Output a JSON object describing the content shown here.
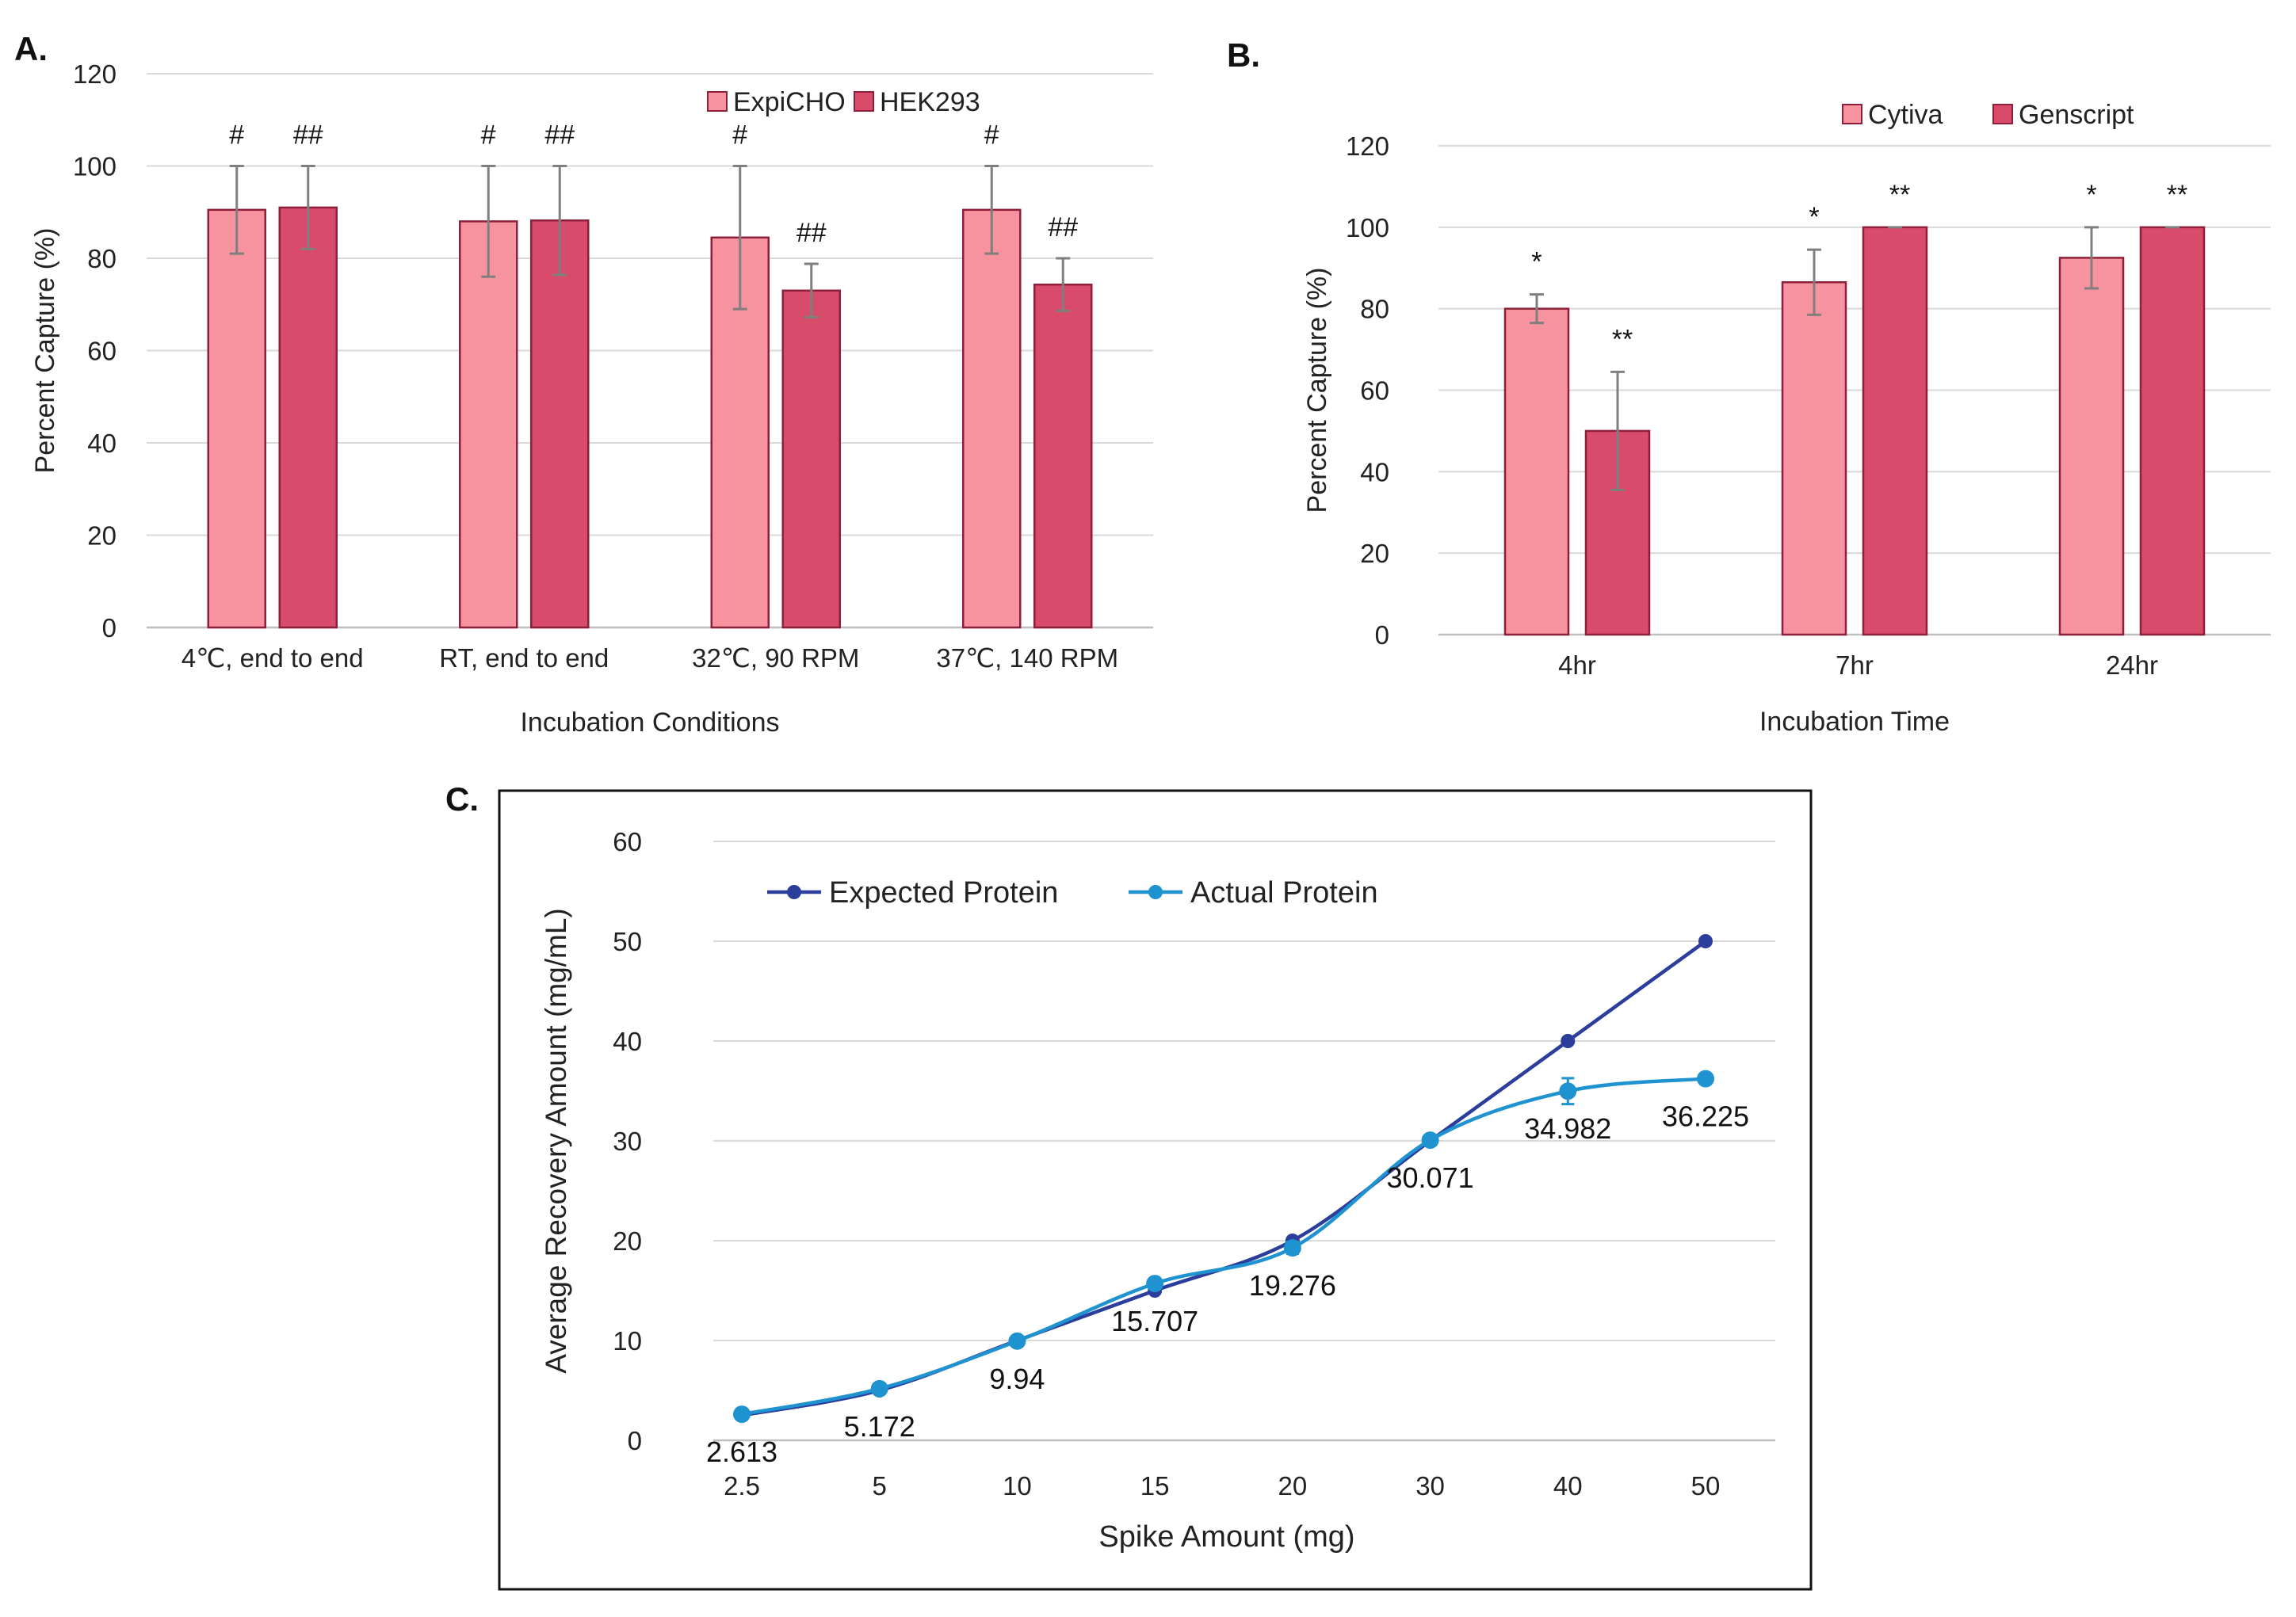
{
  "figure": {
    "panel_labels": [
      "A.",
      "B.",
      "C."
    ]
  },
  "colors": {
    "light_pink": "#f7939e",
    "dark_pink": "#d94b6a",
    "bar_edge": "#8e1f3a",
    "expected_line": "#2c3e9c",
    "actual_line": "#1f92d0"
  },
  "chart_data": [
    {
      "panel": "A.",
      "type": "bar",
      "title": "",
      "xlabel": "Incubation Conditions",
      "ylabel": "Percent Capture (%)",
      "ylim": [
        0,
        120
      ],
      "yticks": [
        0,
        20,
        40,
        60,
        80,
        100,
        120
      ],
      "legend_position": "top-right",
      "categories": [
        "4℃, end to end",
        "RT, end to end",
        "32℃, 90 RPM",
        "37℃, 140 RPM"
      ],
      "series": [
        {
          "name": "ExpiCHO",
          "color": "#f7939e",
          "values": [
            90.5,
            88,
            84.5,
            90.5
          ],
          "errors": [
            9.5,
            12,
            15.5,
            9.5
          ],
          "annotations": [
            "#",
            "#",
            "#",
            "#"
          ]
        },
        {
          "name": "HEK293",
          "color": "#d94b6a",
          "values": [
            91,
            88.2,
            73,
            74.3
          ],
          "errors": [
            9,
            11.8,
            5.8,
            5.7
          ],
          "annotations": [
            "##",
            "##",
            "##",
            "##"
          ]
        }
      ]
    },
    {
      "panel": "B.",
      "type": "bar",
      "title": "",
      "xlabel": "Incubation Time",
      "ylabel": "Percent Capture (%)",
      "ylim": [
        0,
        120
      ],
      "yticks": [
        0,
        20,
        40,
        60,
        80,
        100,
        120
      ],
      "legend_position": "top-right",
      "categories": [
        "4hr",
        "7hr",
        "24hr"
      ],
      "series": [
        {
          "name": "Cytiva",
          "color": "#f7939e",
          "values": [
            80,
            86.5,
            92.5
          ],
          "errors": [
            3.5,
            8,
            7.5
          ],
          "annotations": [
            "*",
            "*",
            "*"
          ]
        },
        {
          "name": "Genscript",
          "color": "#d94b6a",
          "values": [
            50,
            100,
            100
          ],
          "errors": [
            14.5,
            0,
            0
          ],
          "annotations": [
            "**",
            "**",
            "**"
          ]
        }
      ]
    },
    {
      "panel": "C.",
      "type": "line",
      "title": "",
      "xlabel": "Spike Amount (mg)",
      "ylabel": "Average Recovery Amount (mg/mL)",
      "ylim": [
        0,
        60
      ],
      "yticks": [
        0,
        10,
        20,
        30,
        40,
        50,
        60
      ],
      "legend_position": "top-left",
      "x": [
        "2.5",
        "5",
        "10",
        "15",
        "20",
        "30",
        "40",
        "50"
      ],
      "series": [
        {
          "name": "Expected Protein",
          "color": "#2c3e9c",
          "values": [
            2.5,
            5,
            10,
            15,
            20,
            30,
            40,
            50
          ]
        },
        {
          "name": "Actual Protein",
          "color": "#1f92d0",
          "values": [
            2.613,
            5.172,
            9.94,
            15.707,
            19.276,
            30.071,
            34.982,
            36.225
          ],
          "errors": [
            0.3,
            0.4,
            0.4,
            0.5,
            0.6,
            0.5,
            1.3,
            0.4
          ],
          "data_labels": [
            "2.613",
            "5.172",
            "9.94",
            "15.707",
            "19.276",
            "30.071",
            "34.982",
            "36.225"
          ]
        }
      ]
    }
  ]
}
